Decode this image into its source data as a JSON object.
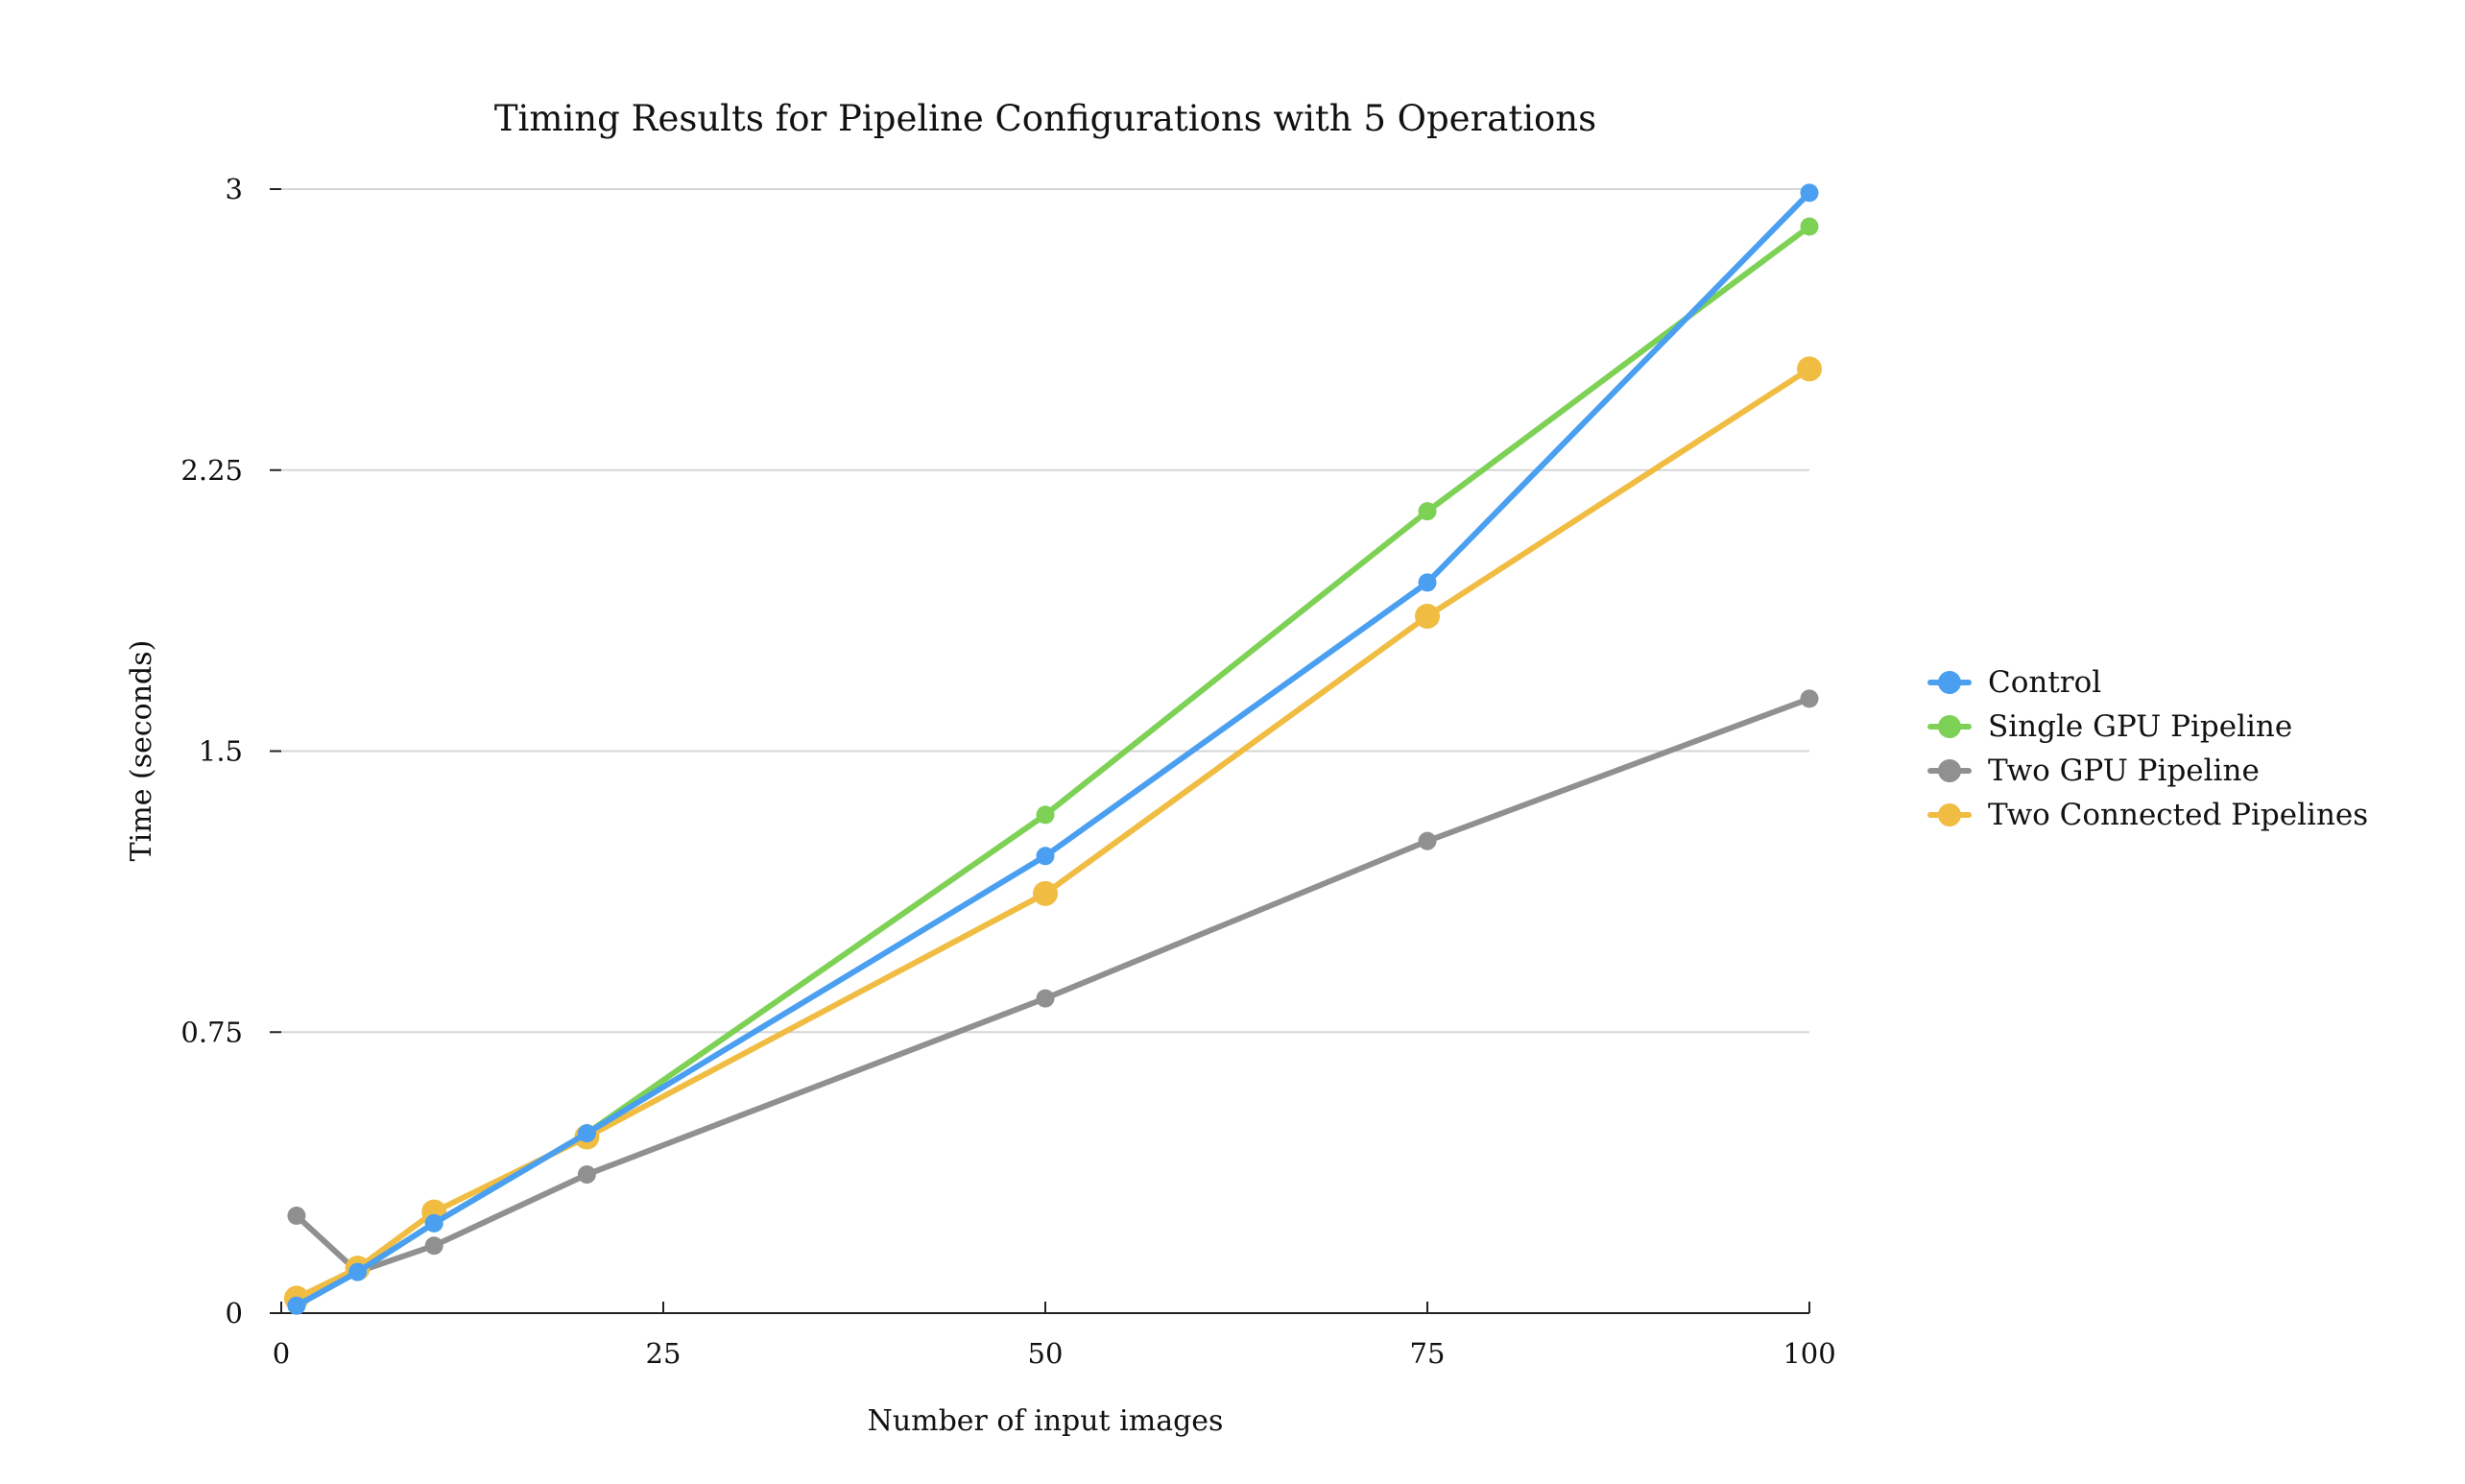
{
  "chart_data": {
    "type": "line",
    "title": "Timing Results for Pipeline Configurations with 5 Operations",
    "xlabel": "Number of input images",
    "ylabel": "Time (seconds)",
    "xlim": [
      0,
      100
    ],
    "ylim": [
      0,
      3
    ],
    "xticks": [
      0,
      25,
      50,
      75,
      100
    ],
    "xtick_labels": [
      "0",
      "25",
      "50",
      "75",
      "100"
    ],
    "yticks": [
      0,
      0.75,
      1.5,
      2.25,
      3
    ],
    "ytick_labels": [
      "0",
      "0.75",
      "1.5",
      "2.25",
      "3"
    ],
    "grid": "horizontal",
    "legend_position": "right",
    "x": [
      1,
      5,
      10,
      20,
      50,
      75,
      100
    ],
    "series": [
      {
        "name": "Control",
        "color": "#4a9ff0",
        "values": [
          0.02,
          0.11,
          0.24,
          0.48,
          1.22,
          1.95,
          2.99
        ],
        "marker_size": "small"
      },
      {
        "name": "Single GPU Pipeline",
        "color": "#7dd155",
        "values": [
          0.02,
          0.11,
          0.24,
          0.48,
          1.33,
          2.14,
          2.9
        ],
        "marker_size": "small"
      },
      {
        "name": "Two GPU Pipeline",
        "color": "#909090",
        "values": [
          0.26,
          0.11,
          0.18,
          0.37,
          0.84,
          1.26,
          1.64
        ],
        "marker_size": "small"
      },
      {
        "name": "Two Connected Pipelines",
        "color": "#f0bc42",
        "values": [
          0.04,
          0.12,
          0.27,
          0.47,
          1.12,
          1.86,
          2.52
        ],
        "marker_size": "large"
      }
    ],
    "draw_order": [
      "Two GPU Pipeline",
      "Single GPU Pipeline",
      "Two Connected Pipelines",
      "Control"
    ]
  }
}
